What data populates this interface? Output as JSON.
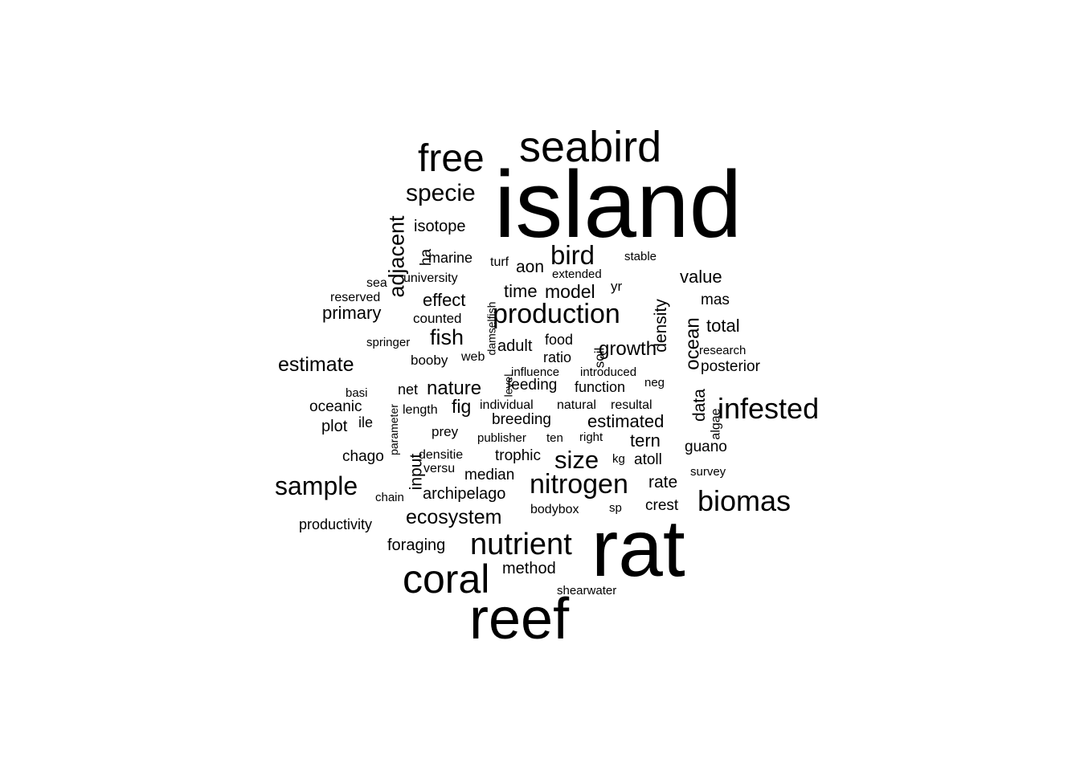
{
  "chart_data": {
    "type": "wordcloud",
    "color": "#000000",
    "background": "#ffffff",
    "words": [
      {
        "text": "island",
        "weight": 10
      },
      {
        "text": "rat",
        "weight": 9
      },
      {
        "text": "reef",
        "weight": 7.5
      },
      {
        "text": "coral",
        "weight": 5.5
      },
      {
        "text": "seabird",
        "weight": 6
      },
      {
        "text": "free",
        "weight": 5.5
      },
      {
        "text": "nutrient",
        "weight": 4.2
      },
      {
        "text": "infested",
        "weight": 4
      },
      {
        "text": "production",
        "weight": 3.8
      },
      {
        "text": "biomas",
        "weight": 4
      },
      {
        "text": "nitrogen",
        "weight": 3.8
      },
      {
        "text": "sample",
        "weight": 3.5
      },
      {
        "text": "bird",
        "weight": 3.6
      },
      {
        "text": "specie",
        "weight": 3.3
      },
      {
        "text": "size",
        "weight": 3.4
      },
      {
        "text": "adjacent",
        "weight": 3
      },
      {
        "text": "ecosystem",
        "weight": 2.8
      },
      {
        "text": "growth",
        "weight": 2.7
      },
      {
        "text": "fish",
        "weight": 3
      },
      {
        "text": "estimate",
        "weight": 2.8
      },
      {
        "text": "nature",
        "weight": 2.7
      },
      {
        "text": "model",
        "weight": 2.6
      },
      {
        "text": "ocean",
        "weight": 2.7
      },
      {
        "text": "value",
        "weight": 2.5
      },
      {
        "text": "estimated",
        "weight": 2.5
      },
      {
        "text": "total",
        "weight": 2.5
      },
      {
        "text": "primary",
        "weight": 2.4
      },
      {
        "text": "time",
        "weight": 2.4
      },
      {
        "text": "effect",
        "weight": 2.4
      },
      {
        "text": "fig",
        "weight": 2.5
      },
      {
        "text": "input",
        "weight": 2.3
      },
      {
        "text": "tern",
        "weight": 2.4
      },
      {
        "text": "data",
        "weight": 2.3
      },
      {
        "text": "density",
        "weight": 2.3
      },
      {
        "text": "archipelago",
        "weight": 2.2
      },
      {
        "text": "rate",
        "weight": 2.3
      },
      {
        "text": "foraging",
        "weight": 2.2
      },
      {
        "text": "method",
        "weight": 2.2
      },
      {
        "text": "adult",
        "weight": 2.2
      },
      {
        "text": "aon",
        "weight": 2.2
      },
      {
        "text": "isotope",
        "weight": 2.2
      },
      {
        "text": "oceanic",
        "weight": 2.1
      },
      {
        "text": "plot",
        "weight": 2.1
      },
      {
        "text": "chago",
        "weight": 2.1
      },
      {
        "text": "atoll",
        "weight": 2.1
      },
      {
        "text": "guano",
        "weight": 2.1
      },
      {
        "text": "breeding",
        "weight": 2.1
      },
      {
        "text": "feeding",
        "weight": 2.1
      },
      {
        "text": "median",
        "weight": 2.1
      },
      {
        "text": "trophic",
        "weight": 2
      },
      {
        "text": "posterior",
        "weight": 2
      },
      {
        "text": "crest",
        "weight": 2
      },
      {
        "text": "productivity",
        "weight": 2
      },
      {
        "text": "mas",
        "weight": 2
      },
      {
        "text": "ha",
        "weight": 2
      },
      {
        "text": "marine",
        "weight": 1.9
      },
      {
        "text": "function",
        "weight": 1.9
      },
      {
        "text": "ratio",
        "weight": 1.9
      },
      {
        "text": "food",
        "weight": 1.9
      },
      {
        "text": "soil",
        "weight": 1.9
      },
      {
        "text": "net",
        "weight": 1.9
      },
      {
        "text": "counted",
        "weight": 1.8
      },
      {
        "text": "booby",
        "weight": 1.8
      },
      {
        "text": "prey",
        "weight": 1.8
      },
      {
        "text": "university",
        "weight": 1.8
      },
      {
        "text": "turf",
        "weight": 1.8
      },
      {
        "text": "algae",
        "weight": 1.8
      },
      {
        "text": "bodybox",
        "weight": 1.7
      },
      {
        "text": "influence",
        "weight": 1.7
      },
      {
        "text": "introduced",
        "weight": 1.7
      },
      {
        "text": "research",
        "weight": 1.7
      },
      {
        "text": "individual",
        "weight": 1.7
      },
      {
        "text": "natural",
        "weight": 1.7
      },
      {
        "text": "resultal",
        "weight": 1.7
      },
      {
        "text": "length",
        "weight": 1.7
      },
      {
        "text": "ile",
        "weight": 1.8
      },
      {
        "text": "sea",
        "weight": 1.7
      },
      {
        "text": "reserved",
        "weight": 1.7
      },
      {
        "text": "springer",
        "weight": 1.7
      },
      {
        "text": "stable",
        "weight": 1.7
      },
      {
        "text": "extended",
        "weight": 1.7
      },
      {
        "text": "yr",
        "weight": 1.8
      },
      {
        "text": "web",
        "weight": 1.7
      },
      {
        "text": "damselfish",
        "weight": 1.6
      },
      {
        "text": "level",
        "weight": 1.6
      },
      {
        "text": "basi",
        "weight": 1.6
      },
      {
        "text": "parameter",
        "weight": 1.6
      },
      {
        "text": "neg",
        "weight": 1.6
      },
      {
        "text": "densitie",
        "weight": 1.7
      },
      {
        "text": "versu",
        "weight": 1.7
      },
      {
        "text": "publisher",
        "weight": 1.6
      },
      {
        "text": "ten",
        "weight": 1.6
      },
      {
        "text": "right",
        "weight": 1.6
      },
      {
        "text": "kg",
        "weight": 1.6
      },
      {
        "text": "survey",
        "weight": 1.6
      },
      {
        "text": "chain",
        "weight": 1.6
      },
      {
        "text": "sp",
        "weight": 1.6
      },
      {
        "text": "shearwater",
        "weight": 1.6
      }
    ]
  }
}
